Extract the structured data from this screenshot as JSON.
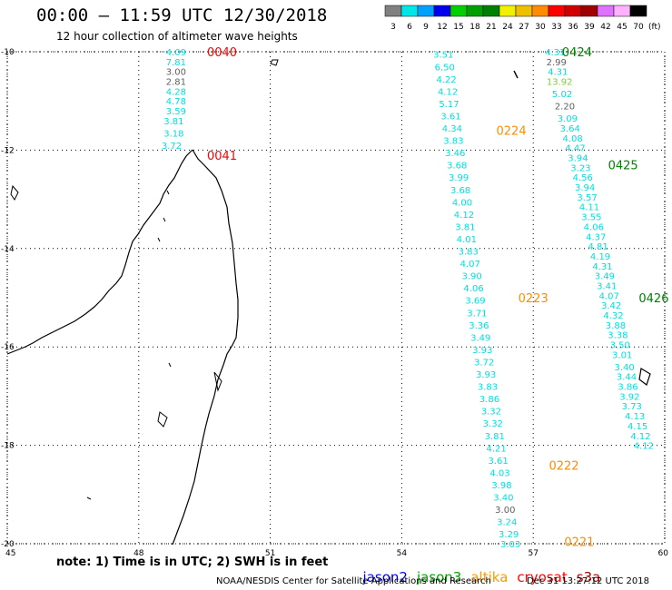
{
  "title": "00:00 – 11:59 UTC 12/30/2018",
  "subtitle": "12 hour collection of altimeter wave heights",
  "colorbar": {
    "unit": "(ft)",
    "levels": [
      {
        "label": "3",
        "color": "#808080"
      },
      {
        "label": "6",
        "color": "#00e5e5"
      },
      {
        "label": "9",
        "color": "#00a0ff"
      },
      {
        "label": "12",
        "color": "#0000ee"
      },
      {
        "label": "15",
        "color": "#00d000"
      },
      {
        "label": "18",
        "color": "#00a000"
      },
      {
        "label": "21",
        "color": "#008000"
      },
      {
        "label": "24",
        "color": "#f0f000"
      },
      {
        "label": "27",
        "color": "#f0c000"
      },
      {
        "label": "30",
        "color": "#ff8c00"
      },
      {
        "label": "33",
        "color": "#ff0000"
      },
      {
        "label": "36",
        "color": "#d00000"
      },
      {
        "label": "39",
        "color": "#a00000"
      },
      {
        "label": "42",
        "color": "#e070ff"
      },
      {
        "label": "45",
        "color": "#ffb0ff"
      },
      {
        "label": "70",
        "color": "#000000"
      }
    ]
  },
  "axes": {
    "lon_ticks": [
      "45",
      "48",
      "51",
      "54",
      "57",
      "60"
    ],
    "lat_ticks": [
      "-10",
      "-12",
      "-14",
      "-16",
      "-18",
      "-20"
    ]
  },
  "passes": [
    {
      "id": "p1",
      "satellite": "cryosat",
      "color": "#ff0000",
      "labels": [
        {
          "time": "0040",
          "lon": 49.9,
          "lat": -10.0
        },
        {
          "time": "0041",
          "lon": 49.9,
          "lat": -12.1
        }
      ],
      "points": [
        {
          "v": "4.09",
          "c": "cyan",
          "lon": 48.85,
          "lat": -10.0
        },
        {
          "v": "7.81",
          "c": "cyan",
          "lon": 48.85,
          "lat": -10.2
        },
        {
          "v": "3.00",
          "c": "gray",
          "lon": 48.85,
          "lat": -10.4
        },
        {
          "v": "2.81",
          "c": "gray",
          "lon": 48.85,
          "lat": -10.6
        },
        {
          "v": "4.28",
          "c": "cyan",
          "lon": 48.85,
          "lat": -10.8
        },
        {
          "v": "4.78",
          "c": "cyan",
          "lon": 48.85,
          "lat": -11.0
        },
        {
          "v": "3.59",
          "c": "cyan",
          "lon": 48.85,
          "lat": -11.2
        },
        {
          "v": "3.81",
          "c": "cyan",
          "lon": 48.8,
          "lat": -11.4
        },
        {
          "v": "3.18",
          "c": "cyan",
          "lon": 48.8,
          "lat": -11.65
        },
        {
          "v": "3.72",
          "c": "cyan",
          "lon": 48.75,
          "lat": -11.9
        }
      ]
    },
    {
      "id": "p2",
      "satellite": "altika",
      "color": "#ff8c00",
      "labels": [
        {
          "time": "0224",
          "lon": 56.5,
          "lat": -11.6
        },
        {
          "time": "0223",
          "lon": 57.0,
          "lat": -15.0
        },
        {
          "time": "0222",
          "lon": 57.7,
          "lat": -18.4
        },
        {
          "time": "0221",
          "lon": 58.05,
          "lat": -19.95
        }
      ],
      "points": [
        {
          "v": "3.51",
          "c": "cyan",
          "lon": 54.95,
          "lat": -10.05
        },
        {
          "v": "6.50",
          "c": "cyan",
          "lon": 54.98,
          "lat": -10.3
        },
        {
          "v": "4.22",
          "c": "cyan",
          "lon": 55.02,
          "lat": -10.55
        },
        {
          "v": "4.12",
          "c": "cyan",
          "lon": 55.05,
          "lat": -10.8
        },
        {
          "v": "5.17",
          "c": "cyan",
          "lon": 55.08,
          "lat": -11.05
        },
        {
          "v": "3.61",
          "c": "cyan",
          "lon": 55.12,
          "lat": -11.3
        },
        {
          "v": "4.34",
          "c": "cyan",
          "lon": 55.15,
          "lat": -11.55
        },
        {
          "v": "3.83",
          "c": "cyan",
          "lon": 55.18,
          "lat": -11.8
        },
        {
          "v": "3.46",
          "c": "cyan",
          "lon": 55.22,
          "lat": -12.05
        },
        {
          "v": "3.68",
          "c": "cyan",
          "lon": 55.26,
          "lat": -12.3
        },
        {
          "v": "3.99",
          "c": "cyan",
          "lon": 55.3,
          "lat": -12.55
        },
        {
          "v": "3.68",
          "c": "cyan",
          "lon": 55.34,
          "lat": -12.8
        },
        {
          "v": "4.00",
          "c": "cyan",
          "lon": 55.38,
          "lat": -13.05
        },
        {
          "v": "4.12",
          "c": "cyan",
          "lon": 55.42,
          "lat": -13.3
        },
        {
          "v": "3.81",
          "c": "cyan",
          "lon": 55.45,
          "lat": -13.55
        },
        {
          "v": "4.01",
          "c": "cyan",
          "lon": 55.48,
          "lat": -13.8
        },
        {
          "v": "3.83",
          "c": "cyan",
          "lon": 55.52,
          "lat": -14.05
        },
        {
          "v": "4.07",
          "c": "cyan",
          "lon": 55.56,
          "lat": -14.3
        },
        {
          "v": "3.90",
          "c": "cyan",
          "lon": 55.6,
          "lat": -14.55
        },
        {
          "v": "4.06",
          "c": "cyan",
          "lon": 55.64,
          "lat": -14.8
        },
        {
          "v": "3.69",
          "c": "cyan",
          "lon": 55.68,
          "lat": -15.05
        },
        {
          "v": "3.71",
          "c": "cyan",
          "lon": 55.72,
          "lat": -15.3
        },
        {
          "v": "3.36",
          "c": "cyan",
          "lon": 55.76,
          "lat": -15.55
        },
        {
          "v": "3.49",
          "c": "cyan",
          "lon": 55.8,
          "lat": -15.8
        },
        {
          "v": "3.93",
          "c": "cyan",
          "lon": 55.84,
          "lat": -16.05
        },
        {
          "v": "3.72",
          "c": "cyan",
          "lon": 55.88,
          "lat": -16.3
        },
        {
          "v": "3.93",
          "c": "cyan",
          "lon": 55.92,
          "lat": -16.55
        },
        {
          "v": "3.83",
          "c": "cyan",
          "lon": 55.96,
          "lat": -16.8
        },
        {
          "v": "3.86",
          "c": "cyan",
          "lon": 56.0,
          "lat": -17.05
        },
        {
          "v": "3.32",
          "c": "cyan",
          "lon": 56.04,
          "lat": -17.3
        },
        {
          "v": "3.32",
          "c": "cyan",
          "lon": 56.08,
          "lat": -17.55
        },
        {
          "v": "3.81",
          "c": "cyan",
          "lon": 56.12,
          "lat": -17.8
        },
        {
          "v": "4.21",
          "c": "cyan",
          "lon": 56.16,
          "lat": -18.05
        },
        {
          "v": "3.61",
          "c": "cyan",
          "lon": 56.2,
          "lat": -18.3
        },
        {
          "v": "4.03",
          "c": "cyan",
          "lon": 56.24,
          "lat": -18.55
        },
        {
          "v": "3.98",
          "c": "cyan",
          "lon": 56.28,
          "lat": -18.8
        },
        {
          "v": "3.40",
          "c": "cyan",
          "lon": 56.32,
          "lat": -19.05
        },
        {
          "v": "3.00",
          "c": "gray",
          "lon": 56.36,
          "lat": -19.3
        },
        {
          "v": "3.24",
          "c": "cyan",
          "lon": 56.4,
          "lat": -19.55
        },
        {
          "v": "3.29",
          "c": "cyan",
          "lon": 56.44,
          "lat": -19.8
        },
        {
          "v": "3.03",
          "c": "cyan",
          "lon": 56.48,
          "lat": -20.0
        }
      ]
    },
    {
      "id": "p3",
      "satellite": "jason3",
      "color": "#008000",
      "labels": [
        {
          "time": "0424",
          "lon": 58.0,
          "lat": -10.0
        },
        {
          "time": "0425",
          "lon": 59.05,
          "lat": -12.3
        },
        {
          "time": "0426",
          "lon": 59.75,
          "lat": -15.0
        }
      ],
      "points": [
        {
          "v": "4.31",
          "c": "cyan",
          "lon": 57.5,
          "lat": -10.0
        },
        {
          "v": "2.99",
          "c": "gray",
          "lon": 57.53,
          "lat": -10.2
        },
        {
          "v": "4.31",
          "c": "cyan",
          "lon": 57.56,
          "lat": -10.4
        },
        {
          "v": "13.92",
          "c": "lightgreen",
          "lon": 57.6,
          "lat": -10.6
        },
        {
          "v": "5.02",
          "c": "cyan",
          "lon": 57.66,
          "lat": -10.85
        },
        {
          "v": "2.20",
          "c": "gray",
          "lon": 57.72,
          "lat": -11.1
        },
        {
          "v": "3.09",
          "c": "cyan",
          "lon": 57.78,
          "lat": -11.35
        },
        {
          "v": "3.64",
          "c": "cyan",
          "lon": 57.84,
          "lat": -11.55
        },
        {
          "v": "4.08",
          "c": "cyan",
          "lon": 57.9,
          "lat": -11.75
        },
        {
          "v": "4.47",
          "c": "cyan",
          "lon": 57.96,
          "lat": -11.95
        },
        {
          "v": "3.94",
          "c": "cyan",
          "lon": 58.02,
          "lat": -12.15
        },
        {
          "v": "3.23",
          "c": "cyan",
          "lon": 58.08,
          "lat": -12.35
        },
        {
          "v": "4.56",
          "c": "cyan",
          "lon": 58.13,
          "lat": -12.55
        },
        {
          "v": "3.94",
          "c": "cyan",
          "lon": 58.18,
          "lat": -12.75
        },
        {
          "v": "3.57",
          "c": "cyan",
          "lon": 58.23,
          "lat": -12.95
        },
        {
          "v": "4.11",
          "c": "cyan",
          "lon": 58.28,
          "lat": -13.15
        },
        {
          "v": "3.55",
          "c": "cyan",
          "lon": 58.33,
          "lat": -13.35
        },
        {
          "v": "4.06",
          "c": "cyan",
          "lon": 58.38,
          "lat": -13.55
        },
        {
          "v": "4.37",
          "c": "cyan",
          "lon": 58.43,
          "lat": -13.75
        },
        {
          "v": "4.81",
          "c": "cyan",
          "lon": 58.48,
          "lat": -13.95
        },
        {
          "v": "4.19",
          "c": "cyan",
          "lon": 58.53,
          "lat": -14.15
        },
        {
          "v": "4.31",
          "c": "cyan",
          "lon": 58.58,
          "lat": -14.35
        },
        {
          "v": "3.49",
          "c": "cyan",
          "lon": 58.63,
          "lat": -14.55
        },
        {
          "v": "3.41",
          "c": "cyan",
          "lon": 58.68,
          "lat": -14.75
        },
        {
          "v": "4.07",
          "c": "cyan",
          "lon": 58.73,
          "lat": -14.95
        },
        {
          "v": "3.42",
          "c": "cyan",
          "lon": 58.78,
          "lat": -15.15
        },
        {
          "v": "4.32",
          "c": "cyan",
          "lon": 58.83,
          "lat": -15.35
        },
        {
          "v": "3.88",
          "c": "cyan",
          "lon": 58.88,
          "lat": -15.55
        },
        {
          "v": "3.38",
          "c": "cyan",
          "lon": 58.93,
          "lat": -15.75
        },
        {
          "v": "3.50",
          "c": "cyan",
          "lon": 58.98,
          "lat": -15.95
        },
        {
          "v": "3.01",
          "c": "cyan",
          "lon": 59.03,
          "lat": -16.15
        },
        {
          "v": "3.40",
          "c": "cyan",
          "lon": 59.08,
          "lat": -16.4
        },
        {
          "v": "3.44",
          "c": "cyan",
          "lon": 59.13,
          "lat": -16.6
        },
        {
          "v": "3.86",
          "c": "cyan",
          "lon": 59.16,
          "lat": -16.8
        },
        {
          "v": "3.92",
          "c": "cyan",
          "lon": 59.2,
          "lat": -17.0
        },
        {
          "v": "3.73",
          "c": "cyan",
          "lon": 59.25,
          "lat": -17.2
        },
        {
          "v": "4.13",
          "c": "cyan",
          "lon": 59.32,
          "lat": -17.4
        },
        {
          "v": "4.15",
          "c": "cyan",
          "lon": 59.38,
          "lat": -17.6
        },
        {
          "v": "4.12",
          "c": "cyan",
          "lon": 59.45,
          "lat": -17.8
        },
        {
          "v": "4.12",
          "c": "cyan",
          "lon": 59.52,
          "lat": -18.0
        }
      ]
    }
  ],
  "note": "note: 1) Time is in UTC; 2) SWH is in feet",
  "legend": [
    {
      "name": "jason2",
      "color": "#0000ee"
    },
    {
      "name": "jason3",
      "color": "#00a000"
    },
    {
      "name": "altika",
      "color": "#ff9900"
    },
    {
      "name": "cryosat",
      "color": "#ff0000"
    },
    {
      "name": "s3a",
      "color": "#a00000"
    }
  ],
  "credit": "NOAA/NESDIS Center for Satellite Applications and Research",
  "timestamp": "Dec 31 13:27:12 UTC 2018",
  "value_colors": {
    "cyan": "#00dede",
    "gray": "#606060",
    "lightgreen": "#7ecc3a"
  }
}
